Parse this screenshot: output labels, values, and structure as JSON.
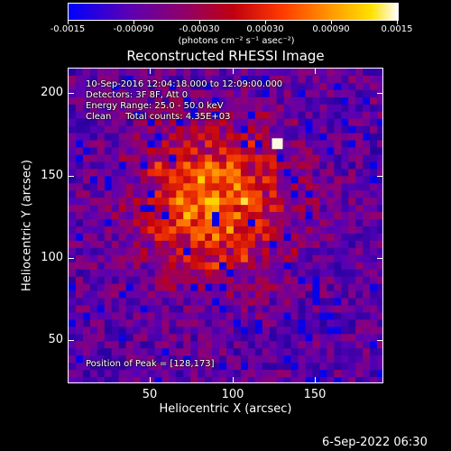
{
  "colorbar": {
    "ticks": [
      "-0.0015",
      "-0.00090",
      "-0.00030",
      "0.00030",
      "0.00090",
      "0.0015"
    ],
    "units": "(photons cm⁻² s⁻¹ asec⁻²)"
  },
  "plot": {
    "title": "Reconstructed RHESSI Image",
    "info_lines": [
      "10-Sep-2016 12:04:18.000 to 12:09:00.000",
      "Detectors: 3F 8F, Att 0",
      "Energy Range: 25.0 - 50.0 keV",
      "Clean     Total counts: 4.35E+03"
    ],
    "peak_text": "Position of Peak = [128,173]",
    "x_label": "Heliocentric X (arcsec)",
    "y_label": "Heliocentric Y (arcsec)",
    "x_ticks": [
      "50",
      "100",
      "150"
    ],
    "y_ticks": [
      "50",
      "100",
      "150",
      "200"
    ],
    "x_range": [
      3,
      192
    ],
    "y_range": [
      29,
      218
    ],
    "peak": [
      128,
      173
    ]
  },
  "footer": {
    "timestamp": "6-Sep-2022 06:30"
  }
}
